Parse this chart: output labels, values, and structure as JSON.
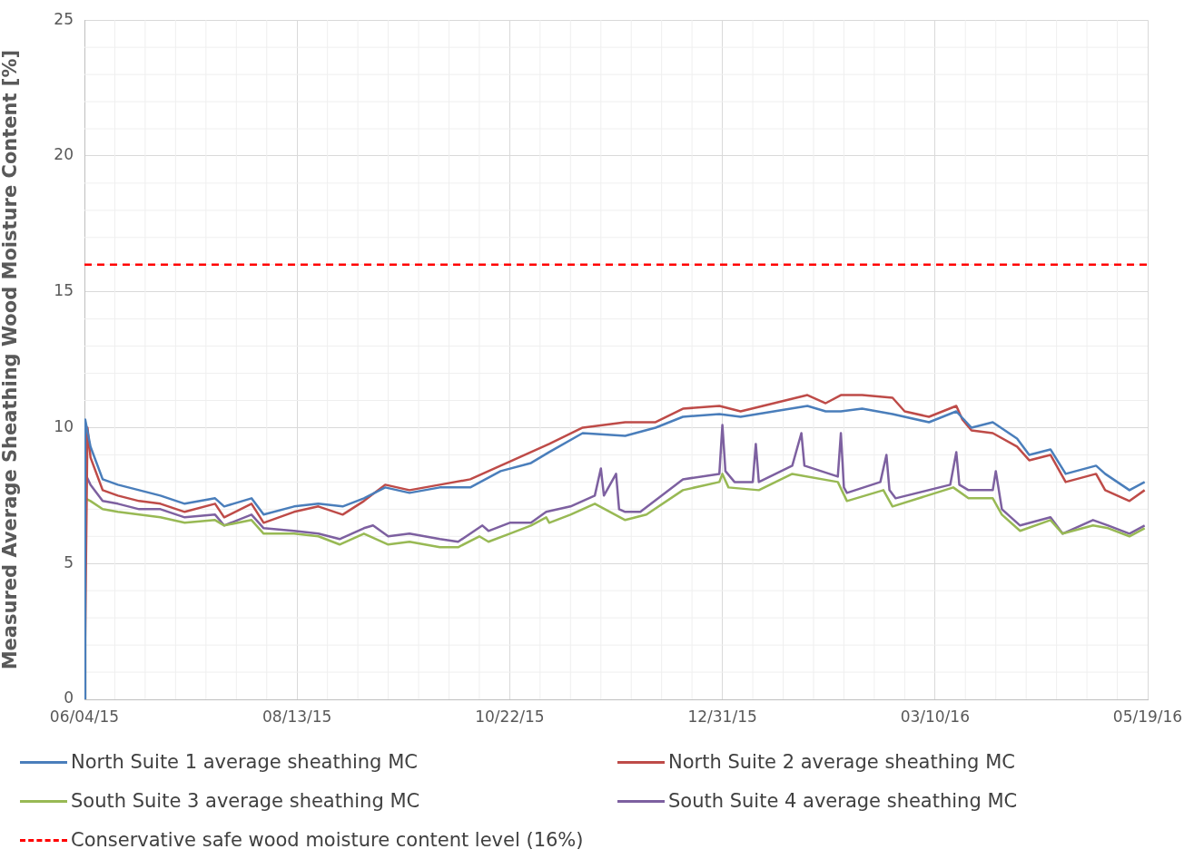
{
  "chart_data": {
    "type": "line",
    "ylabel": "Measured Average Sheathing Wood Moisture Content [%]",
    "xlim": [
      "2015-06-04",
      "2016-05-19"
    ],
    "xticks": [
      {
        "value": "2015-06-04",
        "label": "06/04/15"
      },
      {
        "value": "2015-08-13",
        "label": "08/13/15"
      },
      {
        "value": "2015-10-22",
        "label": "10/22/15"
      },
      {
        "value": "2015-12-31",
        "label": "12/31/15"
      },
      {
        "value": "2016-03-10",
        "label": "03/10/16"
      },
      {
        "value": "2016-05-19",
        "label": "05/19/16"
      }
    ],
    "ylim": [
      0,
      25
    ],
    "yticks": [
      0,
      5,
      10,
      15,
      20,
      25
    ],
    "grid": true,
    "legend": "bottom",
    "series": [
      {
        "name": "North Suite 1 average sheathing MC",
        "color": "#4a7ebb",
        "x": [
          "2015-06-04",
          "2015-06-04T06:00",
          "2015-06-06",
          "2015-06-10",
          "2015-06-15",
          "2015-06-22",
          "2015-06-29",
          "2015-07-07",
          "2015-07-17",
          "2015-07-20",
          "2015-07-29",
          "2015-08-02",
          "2015-08-12",
          "2015-08-20",
          "2015-08-28",
          "2015-09-04",
          "2015-09-11",
          "2015-09-19",
          "2015-09-29",
          "2015-10-09",
          "2015-10-19",
          "2015-10-29",
          "2015-11-04",
          "2015-11-15",
          "2015-11-29",
          "2015-12-09",
          "2015-12-18",
          "2015-12-30",
          "2016-01-06",
          "2016-01-17",
          "2016-01-28",
          "2016-02-03",
          "2016-02-08",
          "2016-02-15",
          "2016-02-25",
          "2016-03-08",
          "2016-03-17",
          "2016-03-22",
          "2016-03-29",
          "2016-04-06",
          "2016-04-10",
          "2016-04-17",
          "2016-04-22",
          "2016-05-02",
          "2016-05-05",
          "2016-05-13",
          "2016-05-18"
        ],
        "values": [
          0,
          10.3,
          9.3,
          8.1,
          7.9,
          7.7,
          7.5,
          7.2,
          7.4,
          7.1,
          7.4,
          6.8,
          7.1,
          7.2,
          7.1,
          7.4,
          7.8,
          7.6,
          7.8,
          7.8,
          8.4,
          8.7,
          9.1,
          9.8,
          9.7,
          10.0,
          10.4,
          10.5,
          10.4,
          10.6,
          10.8,
          10.6,
          10.6,
          10.7,
          10.5,
          10.2,
          10.6,
          10.0,
          10.2,
          9.6,
          9.0,
          9.2,
          8.3,
          8.6,
          8.3,
          7.7,
          8.0
        ]
      },
      {
        "name": "North Suite 2 average sheathing MC",
        "color": "#be4b48",
        "x": [
          "2015-06-04",
          "2015-06-05T00:00",
          "2015-06-06",
          "2015-06-10",
          "2015-06-15",
          "2015-06-22",
          "2015-06-29",
          "2015-07-07",
          "2015-07-17",
          "2015-07-20",
          "2015-07-29",
          "2015-08-02",
          "2015-08-12",
          "2015-08-20",
          "2015-08-28",
          "2015-09-04",
          "2015-09-11",
          "2015-09-19",
          "2015-09-29",
          "2015-10-09",
          "2015-10-19",
          "2015-10-29",
          "2015-11-04",
          "2015-11-15",
          "2015-11-29",
          "2015-12-09",
          "2015-12-18",
          "2015-12-30",
          "2016-01-06",
          "2016-01-17",
          "2016-01-28",
          "2016-02-03",
          "2016-02-08",
          "2016-02-15",
          "2016-02-25",
          "2016-02-29",
          "2016-03-08",
          "2016-03-17",
          "2016-03-19",
          "2016-03-22",
          "2016-03-29",
          "2016-04-06",
          "2016-04-10",
          "2016-04-17",
          "2016-04-22",
          "2016-05-02",
          "2016-05-05",
          "2016-05-13",
          "2016-05-18"
        ],
        "values": [
          0,
          10.0,
          8.9,
          7.7,
          7.5,
          7.3,
          7.2,
          6.9,
          7.2,
          6.7,
          7.2,
          6.5,
          6.9,
          7.1,
          6.8,
          7.3,
          7.9,
          7.7,
          7.9,
          8.1,
          8.6,
          9.1,
          9.4,
          10.0,
          10.2,
          10.2,
          10.7,
          10.8,
          10.6,
          10.9,
          11.2,
          10.9,
          11.2,
          11.2,
          11.1,
          10.6,
          10.4,
          10.8,
          10.3,
          9.9,
          9.8,
          9.3,
          8.8,
          9.0,
          8.0,
          8.3,
          7.7,
          7.3,
          7.7
        ]
      },
      {
        "name": "South Suite 3 average sheathing MC",
        "color": "#98b954",
        "x": [
          "2015-06-04",
          "2015-06-04T06:00",
          "2015-06-06",
          "2015-06-10",
          "2015-06-15",
          "2015-06-22",
          "2015-06-29",
          "2015-07-07",
          "2015-07-17",
          "2015-07-20",
          "2015-07-29",
          "2015-08-02",
          "2015-08-12",
          "2015-08-20",
          "2015-08-27",
          "2015-09-04",
          "2015-09-12",
          "2015-09-19",
          "2015-09-29",
          "2015-10-05",
          "2015-10-12",
          "2015-10-15",
          "2015-10-22",
          "2015-10-29",
          "2015-11-03",
          "2015-11-04",
          "2015-11-11",
          "2015-11-19",
          "2015-11-29",
          "2015-12-06",
          "2015-12-18",
          "2015-12-30",
          "2015-12-31",
          "2016-01-02",
          "2016-01-12",
          "2016-01-23",
          "2016-02-07",
          "2016-02-10",
          "2016-02-22",
          "2016-02-25",
          "2016-03-16",
          "2016-03-21",
          "2016-03-29",
          "2016-04-01",
          "2016-04-07",
          "2016-04-17",
          "2016-04-21",
          "2016-05-01",
          "2016-05-06",
          "2016-05-13",
          "2016-05-18"
        ],
        "values": [
          0,
          7.4,
          7.3,
          7.0,
          6.9,
          6.8,
          6.7,
          6.5,
          6.6,
          6.4,
          6.6,
          6.1,
          6.1,
          6.0,
          5.7,
          6.1,
          5.7,
          5.8,
          5.6,
          5.6,
          6.0,
          5.8,
          6.1,
          6.4,
          6.7,
          6.5,
          6.8,
          7.2,
          6.6,
          6.8,
          7.7,
          8.0,
          8.3,
          7.8,
          7.7,
          8.3,
          8.0,
          7.3,
          7.7,
          7.1,
          7.8,
          7.4,
          7.4,
          6.8,
          6.2,
          6.6,
          6.1,
          6.4,
          6.3,
          6.0,
          6.3
        ]
      },
      {
        "name": "South Suite 4 average sheathing MC",
        "color": "#7d60a0",
        "x": [
          "2015-06-04",
          "2015-06-04T06:00",
          "2015-06-06",
          "2015-06-10",
          "2015-06-15",
          "2015-06-22",
          "2015-06-29",
          "2015-07-07",
          "2015-07-17",
          "2015-07-20",
          "2015-07-29",
          "2015-08-02",
          "2015-08-12",
          "2015-08-20",
          "2015-08-27",
          "2015-09-04",
          "2015-09-07",
          "2015-09-12",
          "2015-09-19",
          "2015-09-29",
          "2015-10-05",
          "2015-10-13",
          "2015-10-15",
          "2015-10-22",
          "2015-10-29",
          "2015-11-03",
          "2015-11-11",
          "2015-11-19",
          "2015-11-21",
          "2015-11-22",
          "2015-11-26",
          "2015-11-27",
          "2015-11-29",
          "2015-12-04",
          "2015-12-18",
          "2015-12-30",
          "2015-12-31",
          "2016-01-01",
          "2016-01-04",
          "2016-01-10",
          "2016-01-11",
          "2016-01-12",
          "2016-01-23",
          "2016-01-26",
          "2016-01-27",
          "2016-02-07",
          "2016-02-08",
          "2016-02-09",
          "2016-02-10",
          "2016-02-21",
          "2016-02-23",
          "2016-02-24",
          "2016-02-26",
          "2016-03-15",
          "2016-03-17",
          "2016-03-18",
          "2016-03-21",
          "2016-03-29",
          "2016-03-30",
          "2016-04-01",
          "2016-04-07",
          "2016-04-17",
          "2016-04-21",
          "2016-05-01",
          "2016-05-06",
          "2016-05-13",
          "2016-05-18"
        ],
        "values": [
          0,
          8.3,
          7.9,
          7.3,
          7.2,
          7.0,
          7.0,
          6.7,
          6.8,
          6.4,
          6.8,
          6.3,
          6.2,
          6.1,
          5.9,
          6.3,
          6.4,
          6.0,
          6.1,
          5.9,
          5.8,
          6.4,
          6.2,
          6.5,
          6.5,
          6.9,
          7.1,
          7.5,
          8.5,
          7.5,
          8.3,
          7.0,
          6.9,
          6.9,
          8.1,
          8.3,
          10.1,
          8.4,
          8.0,
          8.0,
          9.4,
          8.0,
          8.6,
          9.8,
          8.6,
          8.2,
          9.8,
          7.8,
          7.6,
          8.0,
          9.0,
          7.7,
          7.4,
          7.9,
          9.1,
          7.9,
          7.7,
          7.7,
          8.4,
          7.0,
          6.4,
          6.7,
          6.1,
          6.6,
          6.4,
          6.1,
          6.4
        ]
      }
    ],
    "ref_lines": [
      {
        "axis": "y",
        "value": 16,
        "label": "Conservative safe wood moisture content level (16%)",
        "color": "#ff0000",
        "line_style": "dashed"
      }
    ]
  }
}
